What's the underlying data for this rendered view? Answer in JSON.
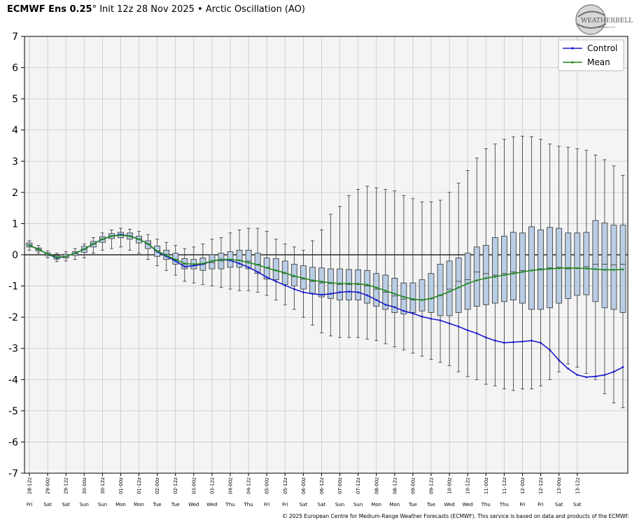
{
  "header": {
    "product": "ECMWF Ens 0.25",
    "degree": "°",
    "init": "Init 12z 28 Nov 2025",
    "bullet": "•",
    "index": "Arctic Oscillation (AO)"
  },
  "logo": {
    "text": "WEATHERBELL",
    "sub": "Analytics LLC"
  },
  "footer": {
    "text": "© 2025 European Centre for Medium-Range Weather Forecasts (ECMWF). This service is based on data and products of the ECMWF."
  },
  "colors": {
    "control": "#1a1acc",
    "mean": "#1f8a1f",
    "box_fill": "#b9cde4",
    "plot_bg": "#f4f4f4"
  },
  "chart_data": {
    "type": "box",
    "ylim": [
      -7,
      7
    ],
    "yticks": [
      7,
      6,
      5,
      4,
      3,
      2,
      1,
      0,
      -1,
      -2,
      -3,
      -4,
      -5,
      -6,
      -7
    ],
    "grid": true,
    "legend": {
      "position": "top-right",
      "entries": [
        "Control",
        "Mean"
      ]
    },
    "x_labels": [
      "28-12z",
      "29-00z",
      "29-12z",
      "30-00z",
      "30-12z",
      "01-00z",
      "01-12z",
      "02-00z",
      "02-12z",
      "03-00z",
      "03-12z",
      "04-00z",
      "04-12z",
      "05-00z",
      "05-12z",
      "06-00z",
      "06-12z",
      "07-00z",
      "07-12z",
      "08-00z",
      "08-12z",
      "09-00z",
      "09-12z",
      "10-00z",
      "10-12z",
      "11-00z",
      "11-12z",
      "12-00z",
      "12-12z",
      "13-00z",
      "13-12z"
    ],
    "day_labels": [
      "Fri",
      "Sat",
      "Sat",
      "Sun",
      "Sun",
      "Mon",
      "Mon",
      "Tue",
      "Tue",
      "Wed",
      "Wed",
      "Thu",
      "Thu",
      "Fri",
      "Fri",
      "Sat",
      "Sat",
      "Sun",
      "Sun",
      "Mon",
      "Mon",
      "Tue",
      "Tue",
      "Wed",
      "Wed",
      "Thu",
      "Thu",
      "Fri",
      "Fri",
      "Sat",
      "Sat"
    ],
    "control": [
      0.3,
      0.18,
      0.02,
      -0.1,
      -0.05,
      0.05,
      0.18,
      0.35,
      0.5,
      0.6,
      0.65,
      0.6,
      0.5,
      0.35,
      0.1,
      -0.05,
      -0.2,
      -0.38,
      -0.35,
      -0.3,
      -0.2,
      -0.15,
      -0.18,
      -0.28,
      -0.4,
      -0.55,
      -0.72,
      -0.85,
      -0.98,
      -1.1,
      -1.2,
      -1.25,
      -1.28,
      -1.25,
      -1.2,
      -1.18,
      -1.2,
      -1.3,
      -1.45,
      -1.6,
      -1.68,
      -1.8,
      -1.88,
      -1.98,
      -2.05,
      -2.1,
      -2.2,
      -2.3,
      -2.42,
      -2.52,
      -2.65,
      -2.75,
      -2.82,
      -2.8,
      -2.78,
      -2.75,
      -2.82,
      -3.05,
      -3.38,
      -3.65,
      -3.85,
      -3.92,
      -3.9,
      -3.85,
      -3.75,
      -3.6
    ],
    "mean": [
      0.3,
      0.18,
      0.02,
      -0.08,
      -0.05,
      0.05,
      0.18,
      0.35,
      0.5,
      0.6,
      0.63,
      0.6,
      0.5,
      0.35,
      0.12,
      -0.02,
      -0.15,
      -0.28,
      -0.3,
      -0.28,
      -0.2,
      -0.15,
      -0.15,
      -0.18,
      -0.25,
      -0.32,
      -0.42,
      -0.5,
      -0.58,
      -0.68,
      -0.75,
      -0.82,
      -0.86,
      -0.9,
      -0.92,
      -0.92,
      -0.93,
      -0.96,
      -1.05,
      -1.15,
      -1.25,
      -1.35,
      -1.42,
      -1.45,
      -1.4,
      -1.3,
      -1.18,
      -1.05,
      -0.92,
      -0.82,
      -0.75,
      -0.7,
      -0.65,
      -0.6,
      -0.55,
      -0.5,
      -0.47,
      -0.45,
      -0.43,
      -0.42,
      -0.43,
      -0.44,
      -0.46,
      -0.48,
      -0.48,
      -0.47
    ],
    "boxes": [
      [
        0.15,
        0.25,
        0.32,
        0.38,
        0.45
      ],
      [
        0.05,
        0.12,
        0.17,
        0.22,
        0.3
      ],
      [
        -0.1,
        -0.03,
        0.02,
        0.06,
        0.12
      ],
      [
        -0.22,
        -0.14,
        -0.08,
        -0.02,
        0.05
      ],
      [
        -0.2,
        -0.1,
        -0.05,
        0.02,
        0.1
      ],
      [
        -0.15,
        -0.02,
        0.04,
        0.1,
        0.2
      ],
      [
        -0.1,
        0.08,
        0.18,
        0.27,
        0.35
      ],
      [
        0.05,
        0.25,
        0.35,
        0.43,
        0.55
      ],
      [
        0.15,
        0.4,
        0.5,
        0.58,
        0.7
      ],
      [
        0.2,
        0.52,
        0.6,
        0.68,
        0.8
      ],
      [
        0.25,
        0.55,
        0.63,
        0.72,
        0.85
      ],
      [
        0.15,
        0.5,
        0.6,
        0.7,
        0.82
      ],
      [
        0.05,
        0.38,
        0.5,
        0.6,
        0.75
      ],
      [
        -0.15,
        0.2,
        0.35,
        0.45,
        0.65
      ],
      [
        -0.35,
        -0.05,
        0.12,
        0.28,
        0.5
      ],
      [
        -0.5,
        -0.15,
        0.02,
        0.15,
        0.4
      ],
      [
        -0.65,
        -0.3,
        -0.15,
        0.05,
        0.3
      ],
      [
        -0.85,
        -0.45,
        -0.3,
        -0.12,
        0.2
      ],
      [
        -0.9,
        -0.45,
        -0.3,
        -0.15,
        0.25
      ],
      [
        -0.95,
        -0.5,
        -0.3,
        -0.1,
        0.35
      ],
      [
        -1.0,
        -0.45,
        -0.25,
        0.0,
        0.5
      ],
      [
        -1.05,
        -0.45,
        -0.2,
        0.05,
        0.55
      ],
      [
        -1.1,
        -0.4,
        -0.15,
        0.1,
        0.7
      ],
      [
        -1.15,
        -0.4,
        -0.18,
        0.15,
        0.8
      ],
      [
        -1.15,
        -0.45,
        -0.2,
        0.15,
        0.85
      ],
      [
        -1.2,
        -0.6,
        -0.3,
        0.05,
        0.85
      ],
      [
        -1.3,
        -0.78,
        -0.4,
        -0.1,
        0.75
      ],
      [
        -1.45,
        -0.8,
        -0.5,
        -0.12,
        0.5
      ],
      [
        -1.6,
        -0.95,
        -0.6,
        -0.2,
        0.35
      ],
      [
        -1.75,
        -1.0,
        -0.7,
        -0.3,
        0.25
      ],
      [
        -2.0,
        -1.1,
        -0.78,
        -0.35,
        0.15
      ],
      [
        -2.25,
        -1.25,
        -0.85,
        -0.4,
        0.45
      ],
      [
        -2.5,
        -1.35,
        -0.9,
        -0.42,
        0.8
      ],
      [
        -2.6,
        -1.4,
        -0.92,
        -0.45,
        1.3
      ],
      [
        -2.65,
        -1.45,
        -0.95,
        -0.45,
        1.55
      ],
      [
        -2.65,
        -1.45,
        -0.95,
        -0.47,
        1.9
      ],
      [
        -2.65,
        -1.45,
        -0.95,
        -0.48,
        2.1
      ],
      [
        -2.7,
        -1.55,
        -1.0,
        -0.5,
        2.2
      ],
      [
        -2.75,
        -1.65,
        -1.1,
        -0.6,
        2.15
      ],
      [
        -2.85,
        -1.75,
        -1.2,
        -0.65,
        2.1
      ],
      [
        -2.95,
        -1.85,
        -1.32,
        -0.75,
        2.05
      ],
      [
        -3.05,
        -1.9,
        -1.42,
        -0.9,
        1.9
      ],
      [
        -3.15,
        -1.85,
        -1.45,
        -0.9,
        1.8
      ],
      [
        -3.25,
        -1.8,
        -1.45,
        -0.8,
        1.7
      ],
      [
        -3.35,
        -1.85,
        -1.4,
        -0.6,
        1.7
      ],
      [
        -3.45,
        -1.95,
        -1.3,
        -0.3,
        1.75
      ],
      [
        -3.55,
        -1.95,
        -1.1,
        -0.2,
        2.0
      ],
      [
        -3.75,
        -1.85,
        -0.85,
        -0.1,
        2.3
      ],
      [
        -3.9,
        -1.75,
        -0.8,
        0.05,
        2.7
      ],
      [
        -4.0,
        -1.65,
        -0.55,
        0.25,
        3.1
      ],
      [
        -4.15,
        -1.6,
        -0.6,
        0.3,
        3.4
      ],
      [
        -4.2,
        -1.55,
        -0.65,
        0.55,
        3.55
      ],
      [
        -4.3,
        -1.5,
        -0.6,
        0.6,
        3.7
      ],
      [
        -4.35,
        -1.45,
        -0.55,
        0.72,
        3.78
      ],
      [
        -4.3,
        -1.55,
        -0.5,
        0.7,
        3.8
      ],
      [
        -4.3,
        -1.75,
        -0.5,
        0.9,
        3.78
      ],
      [
        -4.2,
        -1.75,
        -0.45,
        0.8,
        3.7
      ],
      [
        -4.0,
        -1.7,
        -0.42,
        0.88,
        3.55
      ],
      [
        -3.75,
        -1.55,
        -0.4,
        0.85,
        3.48
      ],
      [
        -3.5,
        -1.4,
        -0.45,
        0.7,
        3.45
      ],
      [
        -3.6,
        -1.3,
        -0.42,
        0.7,
        3.4
      ],
      [
        -3.8,
        -1.28,
        -0.38,
        0.72,
        3.35
      ],
      [
        -4.0,
        -1.5,
        -0.3,
        1.1,
        3.2
      ],
      [
        -4.45,
        -1.7,
        -0.3,
        1.02,
        3.05
      ],
      [
        -4.75,
        -1.75,
        -0.32,
        0.95,
        2.85
      ],
      [
        -4.9,
        -1.85,
        -0.3,
        0.95,
        2.55
      ]
    ]
  }
}
